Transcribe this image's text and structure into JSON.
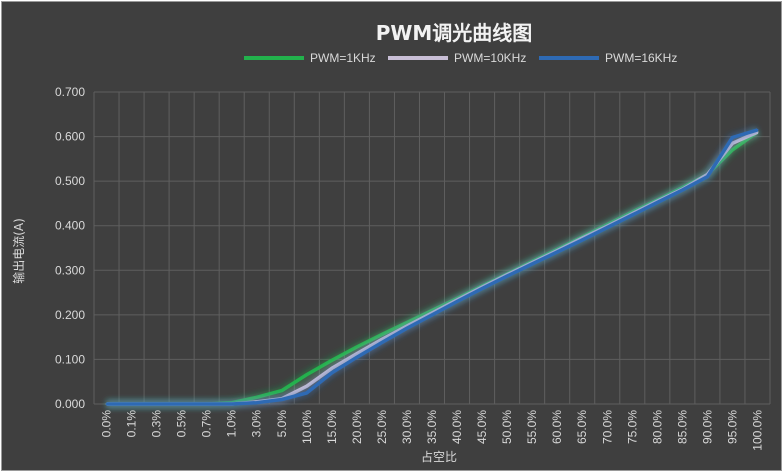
{
  "chart_data": {
    "type": "line",
    "title": "PWM调光曲线图",
    "xlabel": "占空比",
    "ylabel": "输出电流(A)",
    "ylim": [
      0,
      0.7
    ],
    "yticks": [
      "0.000",
      "0.100",
      "0.200",
      "0.300",
      "0.400",
      "0.500",
      "0.600",
      "0.700"
    ],
    "grid": true,
    "legend_position": "top",
    "categories": [
      "0.0%",
      "0.1%",
      "0.3%",
      "0.5%",
      "0.7%",
      "1.0%",
      "3.0%",
      "5.0%",
      "10.0%",
      "15.0%",
      "20.0%",
      "25.0%",
      "30.0%",
      "35.0%",
      "40.0%",
      "45.0%",
      "50.0%",
      "55.0%",
      "60.0%",
      "65.0%",
      "70.0%",
      "75.0%",
      "80.0%",
      "85.0%",
      "90.0%",
      "95.0%",
      "100.0%"
    ],
    "series": [
      {
        "name": "PWM=1KHz",
        "color": "#22b14c",
        "values": [
          0.0,
          0.0,
          0.0,
          0.0,
          0.0,
          0.003,
          0.015,
          0.03,
          0.066,
          0.098,
          0.128,
          0.156,
          0.183,
          0.21,
          0.237,
          0.265,
          0.292,
          0.32,
          0.347,
          0.375,
          0.403,
          0.431,
          0.458,
          0.486,
          0.515,
          0.57,
          0.61
        ]
      },
      {
        "name": "PWM=10KHz",
        "color": "#c9bfd6",
        "values": [
          0.0,
          0.0,
          0.0,
          0.0,
          0.0,
          0.0,
          0.005,
          0.012,
          0.04,
          0.08,
          0.113,
          0.145,
          0.175,
          0.204,
          0.233,
          0.262,
          0.29,
          0.317,
          0.344,
          0.372,
          0.399,
          0.427,
          0.455,
          0.482,
          0.515,
          0.585,
          0.61
        ]
      },
      {
        "name": "PWM=16KHz",
        "color": "#2e6ab4",
        "values": [
          0.0,
          0.0,
          0.0,
          0.0,
          0.0,
          0.0,
          0.003,
          0.01,
          0.025,
          0.07,
          0.105,
          0.138,
          0.17,
          0.2,
          0.23,
          0.259,
          0.287,
          0.314,
          0.341,
          0.368,
          0.396,
          0.424,
          0.452,
          0.48,
          0.51,
          0.598,
          0.615
        ]
      }
    ]
  }
}
